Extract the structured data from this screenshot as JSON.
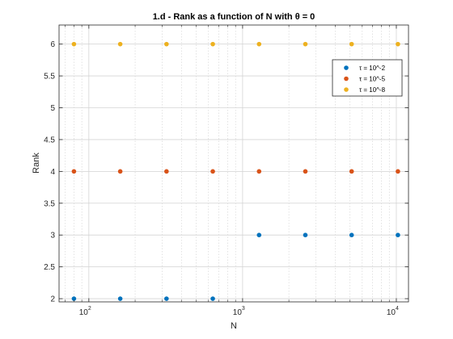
{
  "chart_data": {
    "type": "scatter",
    "title": "1.d - Rank as a function of N with θ = 0",
    "xlabel": "N",
    "ylabel": "Rank",
    "xscale": "log",
    "xlim": [
      64,
      12000
    ],
    "ylim": [
      1.95,
      6.3
    ],
    "grid": true,
    "legend_position": "top-right",
    "x_ticks": [
      {
        "value": 100,
        "base": "10",
        "exp": "2"
      },
      {
        "value": 1000,
        "base": "10",
        "exp": "3"
      },
      {
        "value": 10000,
        "base": "10",
        "exp": "4"
      }
    ],
    "y_ticks": [
      {
        "value": 2,
        "label": "2"
      },
      {
        "value": 2.5,
        "label": "2.5"
      },
      {
        "value": 3,
        "label": "3"
      },
      {
        "value": 3.5,
        "label": "3.5"
      },
      {
        "value": 4,
        "label": "4"
      },
      {
        "value": 4.5,
        "label": "4.5"
      },
      {
        "value": 5,
        "label": "5"
      },
      {
        "value": 5.5,
        "label": "5.5"
      },
      {
        "value": 6,
        "label": "6"
      }
    ],
    "x": [
      80,
      160,
      320,
      640,
      1280,
      2560,
      5120,
      10240
    ],
    "series": [
      {
        "name": "τ = 10^-2",
        "color": "#0072BD",
        "values": [
          2,
          2,
          2,
          2,
          3,
          3,
          3,
          3
        ]
      },
      {
        "name": "τ = 10^-5",
        "color": "#D95319",
        "values": [
          4,
          4,
          4,
          4,
          4,
          4,
          4,
          4
        ]
      },
      {
        "name": "τ = 10^-8",
        "color": "#EDB120",
        "values": [
          6,
          6,
          6,
          6,
          6,
          6,
          6,
          6
        ]
      }
    ]
  }
}
